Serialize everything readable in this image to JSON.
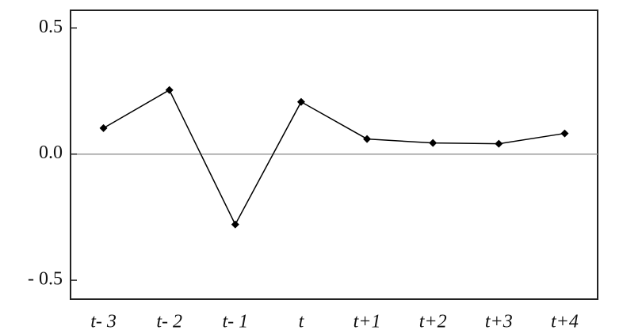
{
  "chart_data": {
    "type": "line",
    "categories": [
      "t- 3",
      "t- 2",
      "t- 1",
      "t",
      "t+1",
      "t+2",
      "t+3",
      "t+4"
    ],
    "values": [
      0.103,
      0.254,
      -0.279,
      0.207,
      0.06,
      0.044,
      0.041,
      0.082
    ],
    "color": "#000000",
    "ylim": [
      -0.575,
      0.57
    ],
    "yticks": [
      {
        "value": -0.5,
        "label": "- 0.5"
      },
      {
        "value": 0,
        "label": "0.0"
      },
      0.5
    ],
    "grid": false
  }
}
